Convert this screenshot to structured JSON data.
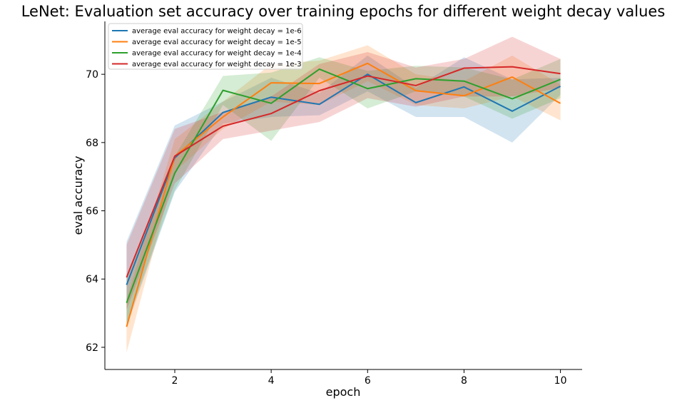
{
  "chart_data": {
    "type": "line",
    "title": "LeNet: Evaluation set accuracy over training epochs for different weight decay values",
    "xlabel": "epoch",
    "ylabel": "eval accuracy",
    "x": [
      1,
      2,
      3,
      4,
      5,
      6,
      7,
      8,
      9,
      10
    ],
    "xticks": [
      2,
      4,
      6,
      8,
      10
    ],
    "yticks": [
      62,
      64,
      66,
      68,
      70
    ],
    "xlim": [
      0.55,
      10.45
    ],
    "ylim": [
      61.35,
      71.55
    ],
    "legend_position": "top-left",
    "grid": false,
    "series": [
      {
        "name": "average eval accuracy for weight decay = 1e-6",
        "color": "#1f77b4",
        "values": [
          63.83,
          67.55,
          68.88,
          69.33,
          69.12,
          70.0,
          69.17,
          69.63,
          68.92,
          69.65
        ],
        "lower": [
          62.6,
          66.55,
          68.55,
          68.75,
          68.8,
          69.5,
          68.75,
          68.75,
          68.0,
          69.4
        ],
        "upper": [
          65.1,
          68.5,
          69.2,
          69.9,
          69.45,
          70.55,
          69.6,
          70.5,
          69.85,
          69.9
        ]
      },
      {
        "name": "average eval accuracy for weight decay = 1e-5",
        "color": "#ff7f0e",
        "values": [
          62.6,
          67.6,
          68.75,
          69.75,
          69.73,
          70.32,
          69.52,
          69.37,
          69.92,
          69.15
        ],
        "lower": [
          61.85,
          67.15,
          68.4,
          69.2,
          69.1,
          69.8,
          69.1,
          69.0,
          69.35,
          68.65
        ],
        "upper": [
          63.4,
          68.1,
          69.2,
          70.3,
          70.4,
          70.85,
          70.0,
          69.8,
          70.55,
          69.7
        ]
      },
      {
        "name": "average eval accuracy for weight decay = 1e-4",
        "color": "#2ca02c",
        "values": [
          63.3,
          67.1,
          69.53,
          69.15,
          70.15,
          69.58,
          69.87,
          69.8,
          69.28,
          69.85
        ],
        "lower": [
          62.7,
          66.6,
          69.1,
          68.05,
          69.9,
          69.0,
          69.5,
          69.35,
          68.7,
          69.3
        ],
        "upper": [
          64.1,
          67.6,
          69.95,
          70.05,
          70.5,
          70.1,
          70.25,
          70.2,
          69.85,
          70.45
        ]
      },
      {
        "name": "average eval accuracy for weight decay = 1e-3",
        "color": "#d62728",
        "values": [
          64.05,
          67.6,
          68.48,
          68.85,
          69.52,
          69.95,
          69.67,
          70.18,
          70.22,
          70.02
        ],
        "lower": [
          63.1,
          66.8,
          68.1,
          68.35,
          68.6,
          69.3,
          69.05,
          69.35,
          69.35,
          69.6
        ],
        "upper": [
          65.0,
          68.4,
          68.9,
          69.35,
          70.3,
          70.65,
          70.2,
          70.45,
          71.1,
          70.45
        ]
      }
    ]
  }
}
